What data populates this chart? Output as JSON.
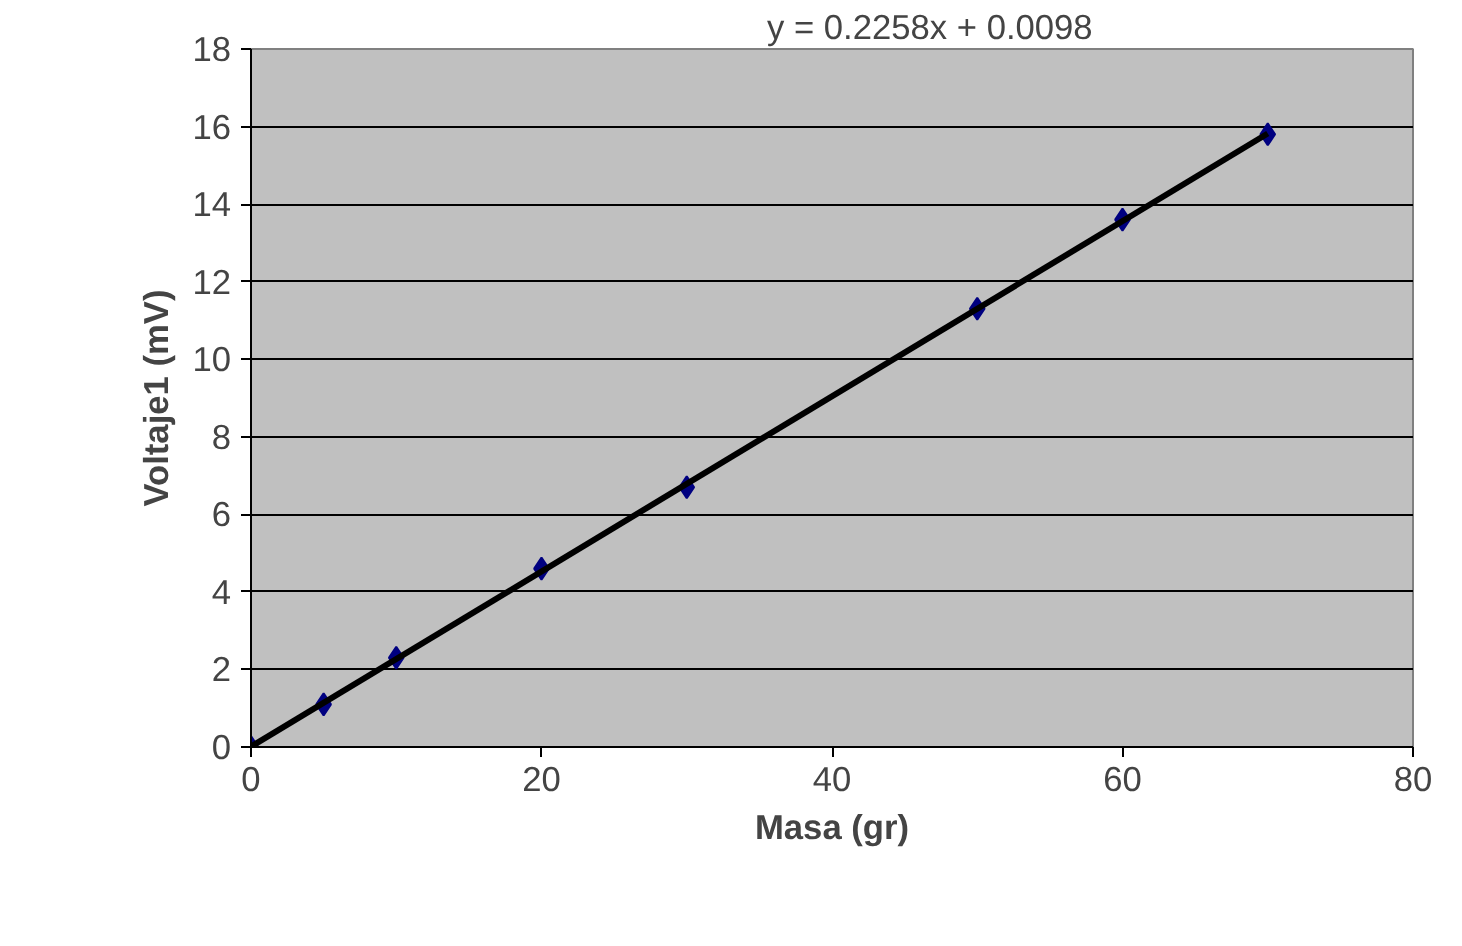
{
  "chart_data": {
    "type": "scatter",
    "xlabel": "Masa (gr)",
    "ylabel": "Voltaje1 (mV)",
    "annotations": [
      "y = 0.2258x + 0.0098"
    ],
    "series": [
      {
        "type": "scatter",
        "color": "#000080",
        "x": [
          0,
          5,
          10,
          20,
          30,
          50,
          60,
          70
        ],
        "values": [
          0,
          1.1,
          2.3,
          4.6,
          6.7,
          11.3,
          13.6,
          15.8
        ],
        "marker": "diamond"
      },
      {
        "type": "line",
        "color": "#000000",
        "x": [
          0,
          70
        ],
        "values": [
          0.01,
          15.82
        ],
        "line_style": "solid"
      }
    ],
    "xlim": [
      0,
      80
    ],
    "xticks": [
      0,
      20,
      40,
      60,
      80
    ],
    "ylim": [
      0,
      18
    ],
    "yticks": [
      0,
      2,
      4,
      6,
      8,
      10,
      12,
      14,
      16,
      18
    ],
    "grid": "y",
    "legend": false
  }
}
